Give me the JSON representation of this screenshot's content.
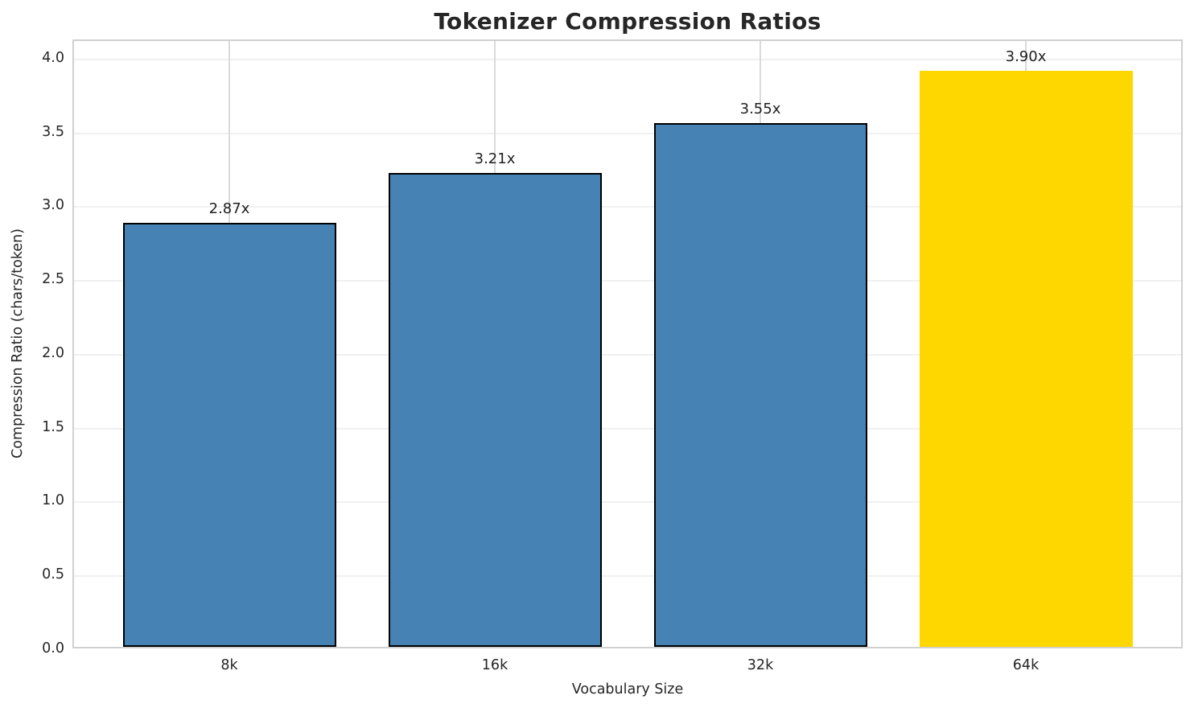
{
  "chart_data": {
    "type": "bar",
    "title": "Tokenizer Compression Ratios",
    "xlabel": "Vocabulary Size",
    "ylabel": "Compression Ratio (chars/token)",
    "categories": [
      "8k",
      "16k",
      "32k",
      "64k"
    ],
    "values": [
      2.87,
      3.21,
      3.55,
      3.9
    ],
    "bar_labels": [
      "2.87x",
      "3.21x",
      "3.55x",
      "3.90x"
    ],
    "bar_colors": [
      "#4682B4",
      "#4682B4",
      "#4682B4",
      "#FFD700"
    ],
    "bar_edge_colors": [
      "#000000",
      "#000000",
      "#000000",
      "none"
    ],
    "highlight_category": "64k",
    "ylim": [
      0,
      4.125
    ],
    "yticks": [
      0.0,
      0.5,
      1.0,
      1.5,
      2.0,
      2.5,
      3.0,
      3.5,
      4.0
    ],
    "ytick_labels": [
      "0.0",
      "0.5",
      "1.0",
      "1.5",
      "2.0",
      "2.5",
      "3.0",
      "3.5",
      "4.0"
    ],
    "grid": true,
    "legend_position": "none",
    "colors": {
      "bar": "#4682B4",
      "highlight": "#FFD700",
      "bar_edge": "#000000",
      "grid_horizontal": "#f0f0f0",
      "grid_vertical": "#dadada",
      "spine": "#d0d0d0",
      "text": "#262626",
      "background": "#ffffff"
    }
  }
}
